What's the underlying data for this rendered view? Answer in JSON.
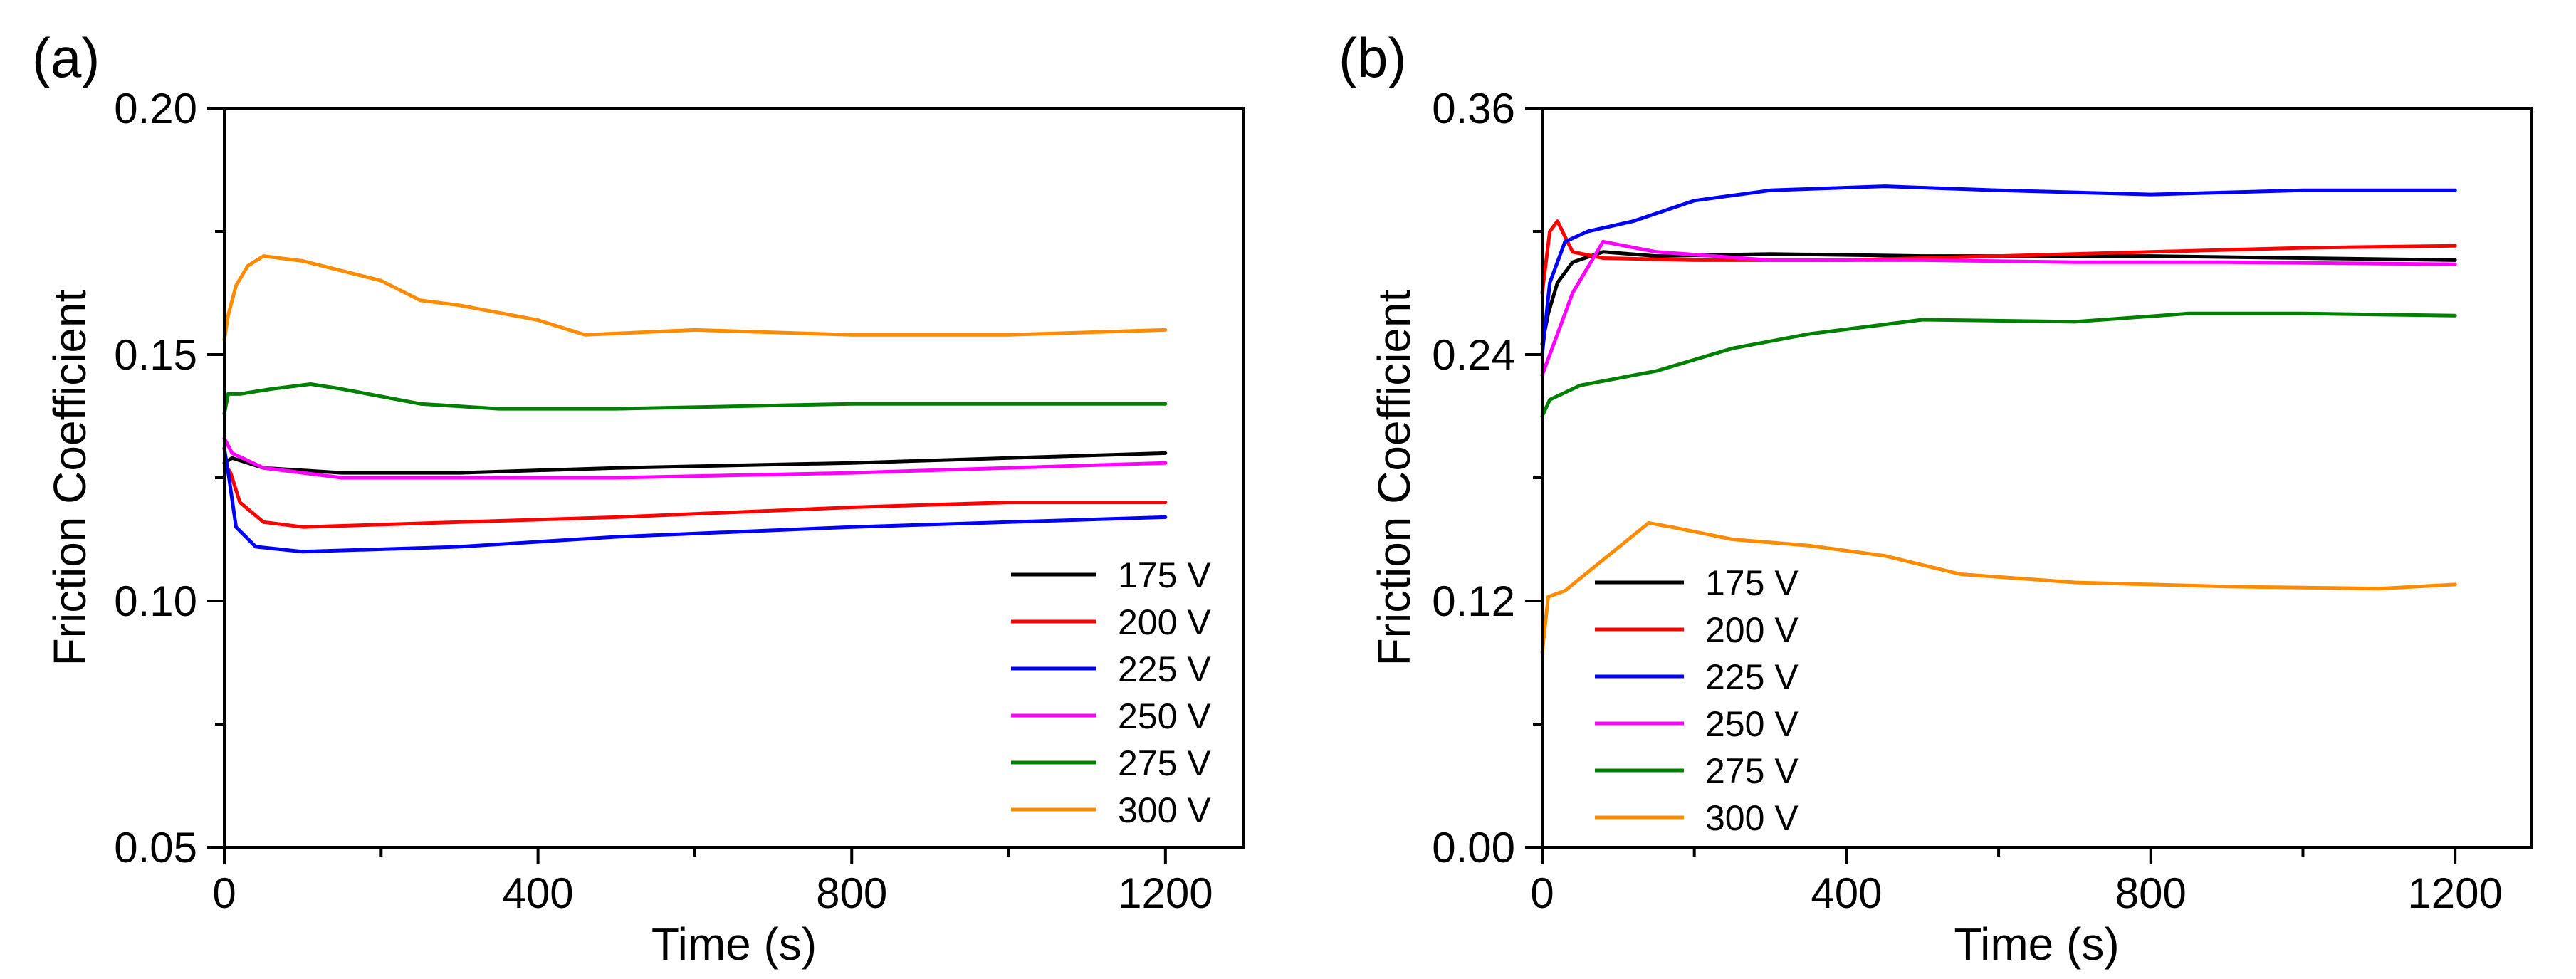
{
  "chart_data": [
    {
      "panel_label": "(a)",
      "type": "line",
      "xlabel": "Time (s)",
      "ylabel": "Friction Coefficient",
      "xlim": [
        0,
        1300
      ],
      "ylim": [
        0.05,
        0.2
      ],
      "xticks": [
        0,
        400,
        800,
        1200
      ],
      "xtick_labels": [
        "0",
        "400",
        "800",
        "1200"
      ],
      "yticks": [
        0.05,
        0.1,
        0.15,
        0.2
      ],
      "ytick_labels": [
        "0.05",
        "0.10",
        "0.15",
        "0.20"
      ],
      "grid": false,
      "legend_position": "bottom-right",
      "series": [
        {
          "name": "175 V",
          "color": "#000000",
          "points": [
            [
              0,
              0.128
            ],
            [
              10,
              0.129
            ],
            [
              50,
              0.127
            ],
            [
              150,
              0.126
            ],
            [
              300,
              0.126
            ],
            [
              500,
              0.127
            ],
            [
              800,
              0.128
            ],
            [
              1000,
              0.129
            ],
            [
              1200,
              0.13
            ]
          ]
        },
        {
          "name": "200 V",
          "color": "#ff0000",
          "points": [
            [
              0,
              0.128
            ],
            [
              8,
              0.126
            ],
            [
              20,
              0.12
            ],
            [
              50,
              0.116
            ],
            [
              100,
              0.115
            ],
            [
              300,
              0.116
            ],
            [
              500,
              0.117
            ],
            [
              800,
              0.119
            ],
            [
              1000,
              0.12
            ],
            [
              1200,
              0.12
            ]
          ]
        },
        {
          "name": "225 V",
          "color": "#0000ff",
          "points": [
            [
              0,
              0.131
            ],
            [
              6,
              0.125
            ],
            [
              15,
              0.115
            ],
            [
              40,
              0.111
            ],
            [
              100,
              0.11
            ],
            [
              300,
              0.111
            ],
            [
              500,
              0.113
            ],
            [
              800,
              0.115
            ],
            [
              1000,
              0.116
            ],
            [
              1200,
              0.117
            ]
          ]
        },
        {
          "name": "250 V",
          "color": "#ff00ff",
          "points": [
            [
              0,
              0.133
            ],
            [
              10,
              0.13
            ],
            [
              50,
              0.127
            ],
            [
              150,
              0.125
            ],
            [
              300,
              0.125
            ],
            [
              500,
              0.125
            ],
            [
              800,
              0.126
            ],
            [
              1000,
              0.127
            ],
            [
              1200,
              0.128
            ]
          ]
        },
        {
          "name": "275 V",
          "color": "#008000",
          "points": [
            [
              0,
              0.138
            ],
            [
              5,
              0.142
            ],
            [
              20,
              0.142
            ],
            [
              60,
              0.143
            ],
            [
              110,
              0.144
            ],
            [
              150,
              0.143
            ],
            [
              250,
              0.14
            ],
            [
              350,
              0.139
            ],
            [
              500,
              0.139
            ],
            [
              800,
              0.14
            ],
            [
              1000,
              0.14
            ],
            [
              1200,
              0.14
            ]
          ]
        },
        {
          "name": "300 V",
          "color": "#ff8c00",
          "points": [
            [
              0,
              0.153
            ],
            [
              5,
              0.158
            ],
            [
              15,
              0.164
            ],
            [
              30,
              0.168
            ],
            [
              50,
              0.17
            ],
            [
              100,
              0.169
            ],
            [
              200,
              0.165
            ],
            [
              250,
              0.161
            ],
            [
              300,
              0.16
            ],
            [
              400,
              0.157
            ],
            [
              460,
              0.154
            ],
            [
              600,
              0.155
            ],
            [
              800,
              0.154
            ],
            [
              1000,
              0.154
            ],
            [
              1200,
              0.155
            ]
          ]
        }
      ]
    },
    {
      "panel_label": "(b)",
      "type": "line",
      "xlabel": "Time (s)",
      "ylabel": "Friction Coefficient",
      "xlim": [
        0,
        1300
      ],
      "ylim": [
        0.0,
        0.36
      ],
      "xticks": [
        0,
        400,
        800,
        1200
      ],
      "xtick_labels": [
        "0",
        "400",
        "800",
        "1200"
      ],
      "yticks": [
        0.0,
        0.12,
        0.24,
        0.36
      ],
      "ytick_labels": [
        "0.00",
        "0.12",
        "0.24",
        "0.36"
      ],
      "grid": false,
      "legend_position": "bottom-left",
      "series": [
        {
          "name": "175 V",
          "color": "#000000",
          "points": [
            [
              0,
              0.245
            ],
            [
              8,
              0.26
            ],
            [
              20,
              0.275
            ],
            [
              40,
              0.285
            ],
            [
              80,
              0.29
            ],
            [
              150,
              0.288
            ],
            [
              300,
              0.289
            ],
            [
              500,
              0.288
            ],
            [
              800,
              0.288
            ],
            [
              1000,
              0.287
            ],
            [
              1200,
              0.286
            ]
          ]
        },
        {
          "name": "200 V",
          "color": "#ff0000",
          "points": [
            [
              0,
              0.27
            ],
            [
              10,
              0.3
            ],
            [
              20,
              0.305
            ],
            [
              40,
              0.29
            ],
            [
              80,
              0.287
            ],
            [
              200,
              0.286
            ],
            [
              400,
              0.286
            ],
            [
              600,
              0.288
            ],
            [
              800,
              0.29
            ],
            [
              1000,
              0.292
            ],
            [
              1200,
              0.293
            ]
          ]
        },
        {
          "name": "225 V",
          "color": "#0000ff",
          "points": [
            [
              0,
              0.24
            ],
            [
              10,
              0.275
            ],
            [
              30,
              0.295
            ],
            [
              60,
              0.3
            ],
            [
              120,
              0.305
            ],
            [
              200,
              0.315
            ],
            [
              300,
              0.32
            ],
            [
              450,
              0.322
            ],
            [
              600,
              0.32
            ],
            [
              800,
              0.318
            ],
            [
              1000,
              0.32
            ],
            [
              1200,
              0.32
            ]
          ]
        },
        {
          "name": "250 V",
          "color": "#ff00ff",
          "points": [
            [
              0,
              0.23
            ],
            [
              20,
              0.25
            ],
            [
              40,
              0.27
            ],
            [
              80,
              0.295
            ],
            [
              150,
              0.29
            ],
            [
              300,
              0.286
            ],
            [
              500,
              0.286
            ],
            [
              700,
              0.285
            ],
            [
              900,
              0.285
            ],
            [
              1200,
              0.284
            ]
          ]
        },
        {
          "name": "275 V",
          "color": "#008000",
          "points": [
            [
              0,
              0.21
            ],
            [
              10,
              0.218
            ],
            [
              50,
              0.225
            ],
            [
              150,
              0.232
            ],
            [
              250,
              0.243
            ],
            [
              350,
              0.25
            ],
            [
              500,
              0.257
            ],
            [
              700,
              0.256
            ],
            [
              850,
              0.26
            ],
            [
              1000,
              0.26
            ],
            [
              1200,
              0.259
            ]
          ]
        },
        {
          "name": "300 V",
          "color": "#ff8c00",
          "points": [
            [
              0,
              0.095
            ],
            [
              8,
              0.122
            ],
            [
              30,
              0.125
            ],
            [
              80,
              0.14
            ],
            [
              140,
              0.158
            ],
            [
              170,
              0.156
            ],
            [
              250,
              0.15
            ],
            [
              350,
              0.147
            ],
            [
              450,
              0.142
            ],
            [
              550,
              0.133
            ],
            [
              700,
              0.129
            ],
            [
              900,
              0.127
            ],
            [
              1100,
              0.126
            ],
            [
              1200,
              0.128
            ]
          ]
        }
      ]
    }
  ]
}
